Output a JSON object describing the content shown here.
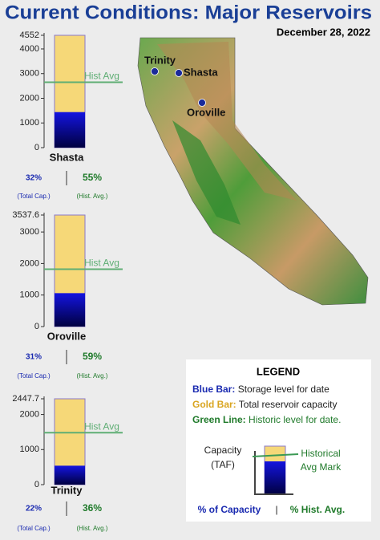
{
  "title": "Current Conditions: Major Reservoirs",
  "date": "December 28, 2022",
  "colors": {
    "storage": "#1010c8",
    "capacity": "#f6d878",
    "hist": "#5fae74",
    "capacity_stroke": "#8a79c9"
  },
  "chart_data": [
    {
      "type": "bar",
      "name": "Shasta",
      "capacity": 4552,
      "storage": 1440,
      "hist_avg": 2650,
      "hist_avg_label": "Hist Avg",
      "ylim": [
        0,
        4552
      ],
      "yticks": [
        0,
        1000,
        2000,
        3000,
        4000,
        4552
      ],
      "percents": [
        32,
        55
      ],
      "value_labels": [
        "32%",
        "55%"
      ],
      "percent_captions": [
        "(Total Cap.)",
        "(Hist. Avg.)"
      ]
    },
    {
      "type": "bar",
      "name": "Oroville",
      "capacity": 3537.6,
      "storage": 1060,
      "hist_avg": 1820,
      "hist_avg_label": "Hist Avg",
      "ylim": [
        0,
        3537.6
      ],
      "yticks": [
        0,
        1000,
        2000,
        3000,
        3537.6
      ],
      "percents": [
        31,
        59
      ],
      "value_labels": [
        "31%",
        "59%"
      ],
      "percent_captions": [
        "(Total Cap.)",
        "(Hist. Avg.)"
      ]
    },
    {
      "type": "bar",
      "name": "Trinity",
      "capacity": 2447.7,
      "storage": 540,
      "hist_avg": 1480,
      "hist_avg_label": "Hist Avg",
      "ylim": [
        0,
        2447.7
      ],
      "yticks": [
        0,
        1000,
        2000,
        2447.7
      ],
      "percents": [
        22,
        36
      ],
      "value_labels": [
        "22%",
        "36%"
      ],
      "percent_captions": [
        "(Total Cap.)",
        "(Hist. Avg.)"
      ]
    }
  ],
  "map": {
    "labels": [
      "Trinity",
      "Shasta",
      "Oroville"
    ]
  },
  "legend": {
    "title": "LEGEND",
    "items": [
      [
        "Blue Bar:",
        "Storage level for date"
      ],
      [
        "Gold Bar:",
        "Total reservoir capacity"
      ],
      [
        "Green Line:",
        "Historic level for date."
      ]
    ],
    "capacity_label": [
      "Capacity",
      "(TAF)"
    ],
    "hist_label": [
      "Historical",
      "Avg Mark"
    ],
    "footer": [
      "% of Capacity",
      "|",
      "% Hist. Avg."
    ]
  }
}
